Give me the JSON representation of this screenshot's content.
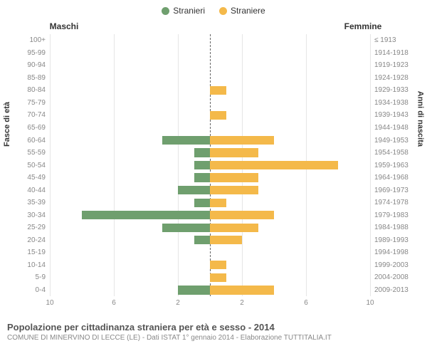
{
  "legend": {
    "male": {
      "label": "Stranieri",
      "color": "#6f9f6e"
    },
    "female": {
      "label": "Straniere",
      "color": "#f4b94a"
    }
  },
  "headers": {
    "left": "Maschi",
    "right": "Femmine",
    "ylabel_left": "Fasce di età",
    "ylabel_right": "Anni di nascita"
  },
  "axis": {
    "max": 10,
    "ticks_left": [
      10,
      6,
      2
    ],
    "ticks_right": [
      2,
      6,
      10
    ],
    "gridline_color": "#e6e6e6",
    "centerline_color": "#666666"
  },
  "rows": [
    {
      "age": "100+",
      "year": "≤ 1913",
      "m": 0,
      "f": 0
    },
    {
      "age": "95-99",
      "year": "1914-1918",
      "m": 0,
      "f": 0
    },
    {
      "age": "90-94",
      "year": "1919-1923",
      "m": 0,
      "f": 0
    },
    {
      "age": "85-89",
      "year": "1924-1928",
      "m": 0,
      "f": 0
    },
    {
      "age": "80-84",
      "year": "1929-1933",
      "m": 0,
      "f": 1
    },
    {
      "age": "75-79",
      "year": "1934-1938",
      "m": 0,
      "f": 0
    },
    {
      "age": "70-74",
      "year": "1939-1943",
      "m": 0,
      "f": 1
    },
    {
      "age": "65-69",
      "year": "1944-1948",
      "m": 0,
      "f": 0
    },
    {
      "age": "60-64",
      "year": "1949-1953",
      "m": 3,
      "f": 4
    },
    {
      "age": "55-59",
      "year": "1954-1958",
      "m": 1,
      "f": 3
    },
    {
      "age": "50-54",
      "year": "1959-1963",
      "m": 1,
      "f": 8
    },
    {
      "age": "45-49",
      "year": "1964-1968",
      "m": 1,
      "f": 3
    },
    {
      "age": "40-44",
      "year": "1969-1973",
      "m": 2,
      "f": 3
    },
    {
      "age": "35-39",
      "year": "1974-1978",
      "m": 1,
      "f": 1
    },
    {
      "age": "30-34",
      "year": "1979-1983",
      "m": 8,
      "f": 4
    },
    {
      "age": "25-29",
      "year": "1984-1988",
      "m": 3,
      "f": 3
    },
    {
      "age": "20-24",
      "year": "1989-1993",
      "m": 1,
      "f": 2
    },
    {
      "age": "15-19",
      "year": "1994-1998",
      "m": 0,
      "f": 0
    },
    {
      "age": "10-14",
      "year": "1999-2003",
      "m": 0,
      "f": 1
    },
    {
      "age": "5-9",
      "year": "2004-2008",
      "m": 0,
      "f": 1
    },
    {
      "age": "0-4",
      "year": "2009-2013",
      "m": 2,
      "f": 4
    }
  ],
  "footer": {
    "title": "Popolazione per cittadinanza straniera per età e sesso - 2014",
    "subtitle": "COMUNE DI MINERVINO DI LECCE (LE) - Dati ISTAT 1° gennaio 2014 - Elaborazione TUTTITALIA.IT"
  },
  "style": {
    "bar_height_pct": 70,
    "background": "#ffffff",
    "tick_color": "#888888",
    "title_color": "#555555",
    "subtitle_color": "#888888"
  }
}
